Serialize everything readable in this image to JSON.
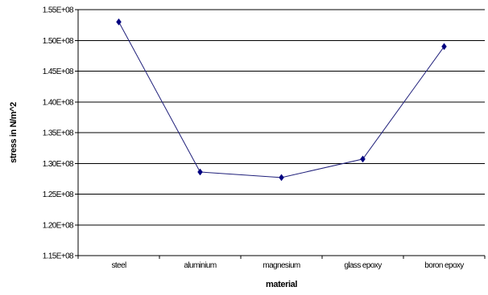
{
  "chart_data": {
    "type": "line",
    "categories": [
      "steel",
      "aluminium",
      "magnesium",
      "glass epoxy",
      "boron epoxy"
    ],
    "series": [
      {
        "values": [
          153000000,
          128600000,
          127700000,
          130700000,
          149000000
        ]
      }
    ],
    "title": "",
    "xlabel": "material",
    "ylabel": "stress in N/m^2",
    "ylim": [
      115000000,
      155000000
    ],
    "ytick_values": [
      115000000,
      120000000,
      125000000,
      130000000,
      135000000,
      140000000,
      145000000,
      150000000,
      155000000
    ],
    "ytick_labels": [
      "1.15E+08",
      "1.20E+08",
      "1.25E+08",
      "1.30E+08",
      "1.35E+08",
      "1.40E+08",
      "1.45E+08",
      "1.50E+08",
      "1.55E+08"
    ],
    "grid": "horizontal",
    "legend": "none",
    "line_color": "#1f1f7a",
    "marker_color": "#000080",
    "marker": "diamond"
  }
}
